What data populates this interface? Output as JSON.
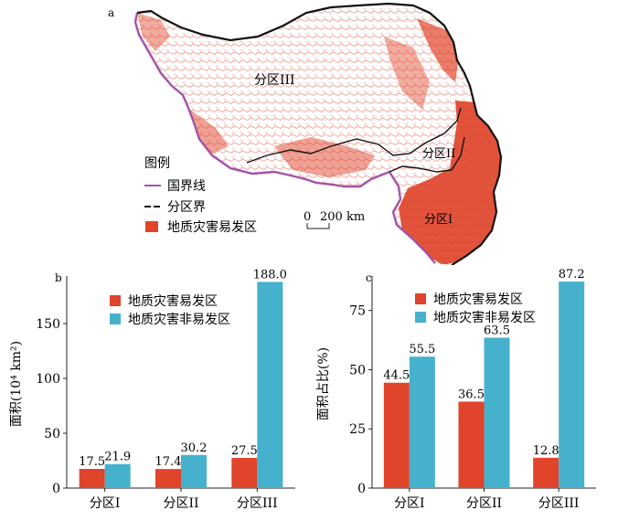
{
  "map": {
    "panel_label": "a",
    "region_labels": {
      "zone3": "分区III",
      "zone2": "分区II",
      "zone1": "分区I"
    },
    "legend": {
      "title": "图例",
      "national_border": "国界线",
      "zone_boundary": "分区界",
      "hazard_prone": "地质灾害易发区"
    },
    "scale": {
      "zero": "0",
      "value": "200 km"
    },
    "colors": {
      "hazard": "#e0442b",
      "national_border": "#a552a8",
      "zone_boundary": "#111111"
    }
  },
  "chart_data": [
    {
      "type": "bar",
      "panel_label": "b",
      "categories": [
        "分区I",
        "分区II",
        "分区III"
      ],
      "series": [
        {
          "name": "地质灾害易发区",
          "values": [
            17.5,
            17.4,
            27.5
          ],
          "color": "#e0442b"
        },
        {
          "name": "地质灾害非易发区",
          "values": [
            21.9,
            30.2,
            188.0
          ],
          "color": "#45b1cc"
        }
      ],
      "value_labels": [
        [
          "17.5",
          "17.4",
          "27.5"
        ],
        [
          "21.9",
          "30.2",
          "188.0"
        ]
      ],
      "ylabel": "面积(10⁴ km²)",
      "ylim": [
        0,
        190
      ],
      "yticks": [
        0,
        50,
        100,
        150
      ],
      "legend": "top-left",
      "grid": false
    },
    {
      "type": "bar",
      "panel_label": "c",
      "categories": [
        "分区I",
        "分区II",
        "分区III"
      ],
      "series": [
        {
          "name": "地质灾害易发区",
          "values": [
            44.5,
            36.5,
            12.8
          ],
          "color": "#e0442b"
        },
        {
          "name": "地质灾害非易发区",
          "values": [
            55.5,
            63.5,
            87.2
          ],
          "color": "#45b1cc"
        }
      ],
      "value_labels": [
        [
          "44.5",
          "36.5",
          "12.8"
        ],
        [
          "55.5",
          "63.5",
          "87.2"
        ]
      ],
      "ylabel": "面积占比(%)",
      "ylim": [
        0,
        88
      ],
      "yticks": [
        0,
        25,
        50,
        75
      ],
      "legend": "top-left",
      "grid": false
    }
  ]
}
